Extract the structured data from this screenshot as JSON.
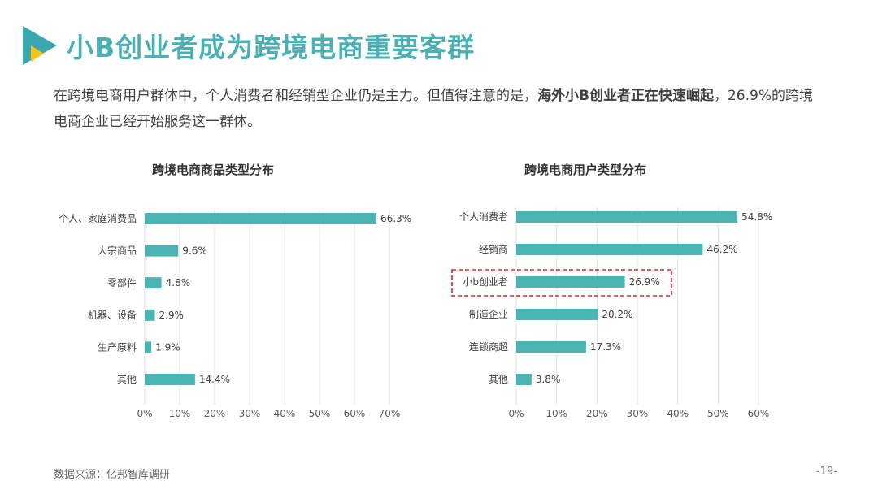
{
  "header": {
    "title": "小B创业者成为跨境电商重要客群"
  },
  "description": {
    "part1": "在跨境电商用户群体中，个人消费者和经销型企业仍是主力。但值得注意的是，",
    "bold": "海外小B创业者正在快速崛起",
    "part2": "，26.9%的跨境电商企业已经开始服务这一群体。"
  },
  "colors": {
    "title": "#4ab0b3",
    "bar": "#4db4b4",
    "highlight_box": "#e02020",
    "logo_teal": "#3aa8ae",
    "logo_yellow": "#f5c518"
  },
  "chart_data": [
    {
      "type": "bar",
      "orientation": "horizontal",
      "title": "跨境电商商品类型分布",
      "categories": [
        "个人、家庭消费品",
        "大宗商品",
        "零部件",
        "机器、设备",
        "生产原料",
        "其他"
      ],
      "values": [
        66.3,
        9.6,
        4.8,
        2.9,
        1.9,
        14.4
      ],
      "value_labels": [
        "66.3%",
        "9.6%",
        "4.8%",
        "2.9%",
        "1.9%",
        "14.4%"
      ],
      "xlim": [
        0,
        70
      ],
      "xticks": [
        "0%",
        "10%",
        "20%",
        "30%",
        "40%",
        "50%",
        "60%",
        "70%"
      ],
      "grid": true
    },
    {
      "type": "bar",
      "orientation": "horizontal",
      "title": "跨境电商用户类型分布",
      "categories": [
        "个人消费者",
        "经销商",
        "小b创业者",
        "制造企业",
        "连锁商超",
        "其他"
      ],
      "values": [
        54.8,
        46.2,
        26.9,
        20.2,
        17.3,
        3.8
      ],
      "value_labels": [
        "54.8%",
        "46.2%",
        "26.9%",
        "20.2%",
        "17.3%",
        "3.8%"
      ],
      "xlim": [
        0,
        60
      ],
      "xticks": [
        "0%",
        "10%",
        "20%",
        "30%",
        "40%",
        "50%",
        "60%"
      ],
      "grid": true,
      "highlight_category": "小b创业者"
    }
  ],
  "footer": {
    "source": "数据来源：亿邦智库调研",
    "page": "-19-"
  }
}
